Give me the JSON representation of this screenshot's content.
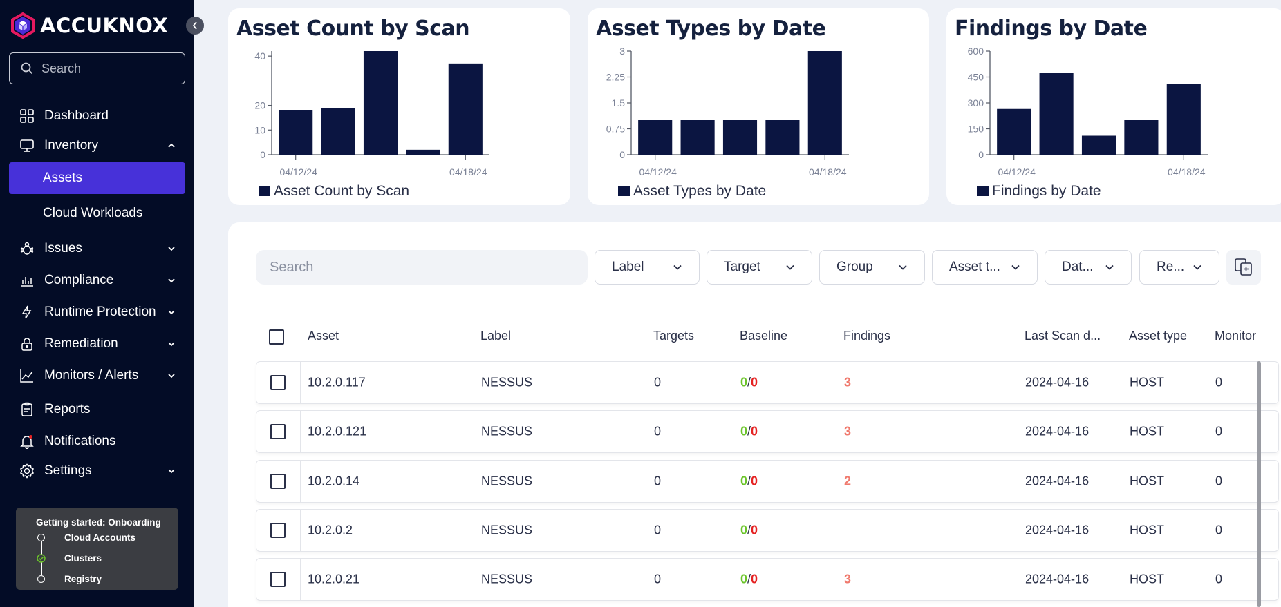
{
  "brand": {
    "name": "ACCUKNOX"
  },
  "sidebar": {
    "search_placeholder": "Search",
    "items": [
      {
        "label": "Dashboard"
      },
      {
        "label": "Inventory"
      },
      {
        "label": "Assets"
      },
      {
        "label": "Cloud Workloads"
      },
      {
        "label": "Issues"
      },
      {
        "label": "Compliance"
      },
      {
        "label": "Runtime Protection"
      },
      {
        "label": "Remediation"
      },
      {
        "label": "Monitors / Alerts"
      },
      {
        "label": "Reports"
      },
      {
        "label": "Notifications"
      },
      {
        "label": "Settings"
      }
    ],
    "onboarding": {
      "title": "Getting started: Onboarding",
      "steps": [
        {
          "label": "Cloud Accounts",
          "done": false
        },
        {
          "label": "Clusters",
          "done": true
        },
        {
          "label": "Registry",
          "done": false
        }
      ]
    }
  },
  "colors": {
    "sidebar_bg": "#030c26",
    "accent": "#4731d9",
    "bar": "#0b1541",
    "baseline_ok": "#6bc42a",
    "baseline_bad": "#e52222",
    "findings": "#f07a6e"
  },
  "chart_data": [
    {
      "type": "bar",
      "title": "Asset Count by Scan",
      "legend": "Asset Count by Scan",
      "x_tick_labels": [
        "04/12/24",
        "04/18/24"
      ],
      "y_ticks": [
        "0",
        "10",
        "20",
        "40"
      ],
      "ylim": [
        0,
        42
      ],
      "values": [
        18,
        19,
        42,
        2,
        37
      ]
    },
    {
      "type": "bar",
      "title": "Asset Types by Date",
      "legend": "Asset Types by Date",
      "x_tick_labels": [
        "04/12/24",
        "04/18/24"
      ],
      "y_ticks": [
        "0",
        "0.75",
        "1.5",
        "2.25",
        "3"
      ],
      "ylim": [
        0,
        3
      ],
      "values": [
        1,
        1,
        1,
        1,
        3
      ]
    },
    {
      "type": "bar",
      "title": "Findings by Date",
      "legend": "Findings by Date",
      "x_tick_labels": [
        "04/12/24",
        "04/18/24"
      ],
      "y_ticks": [
        "0",
        "150",
        "300",
        "450",
        "600"
      ],
      "ylim": [
        0,
        600
      ],
      "values": [
        265,
        475,
        110,
        200,
        410
      ]
    }
  ],
  "table": {
    "search_placeholder": "Search",
    "filters": [
      "Label",
      "Target",
      "Group",
      "Asset t...",
      "Dat...",
      "Re..."
    ],
    "columns": [
      "Asset",
      "Label",
      "Targets",
      "Baseline",
      "Findings",
      "Last Scan d...",
      "Asset type",
      "Monitor"
    ],
    "rows": [
      {
        "asset": "10.2.0.117",
        "label": "NESSUS",
        "targets": "0",
        "baseline_ok": "0",
        "baseline_bad": "0",
        "findings": "3",
        "last_scan": "2024-04-16",
        "asset_type": "HOST",
        "monitor": "0"
      },
      {
        "asset": "10.2.0.121",
        "label": "NESSUS",
        "targets": "0",
        "baseline_ok": "0",
        "baseline_bad": "0",
        "findings": "3",
        "last_scan": "2024-04-16",
        "asset_type": "HOST",
        "monitor": "0"
      },
      {
        "asset": "10.2.0.14",
        "label": "NESSUS",
        "targets": "0",
        "baseline_ok": "0",
        "baseline_bad": "0",
        "findings": "2",
        "last_scan": "2024-04-16",
        "asset_type": "HOST",
        "monitor": "0"
      },
      {
        "asset": "10.2.0.2",
        "label": "NESSUS",
        "targets": "0",
        "baseline_ok": "0",
        "baseline_bad": "0",
        "findings": "",
        "last_scan": "2024-04-16",
        "asset_type": "HOST",
        "monitor": "0"
      },
      {
        "asset": "10.2.0.21",
        "label": "NESSUS",
        "targets": "0",
        "baseline_ok": "0",
        "baseline_bad": "0",
        "findings": "3",
        "last_scan": "2024-04-16",
        "asset_type": "HOST",
        "monitor": "0"
      }
    ]
  }
}
